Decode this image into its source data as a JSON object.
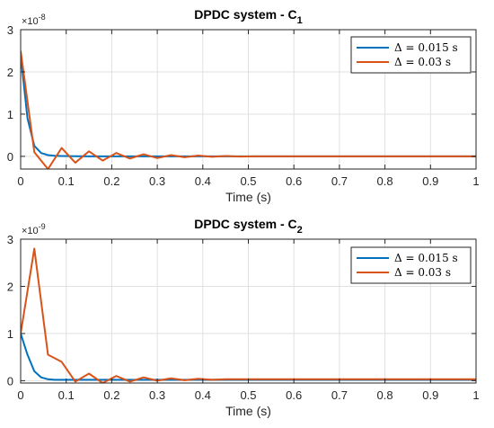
{
  "chart_data": [
    {
      "type": "line",
      "title_main": "DPDC system - C",
      "title_sub": "1",
      "xlabel": "Time (s)",
      "ylabel": "",
      "exponent_base": "×10",
      "exponent_power": "-8",
      "xlim": [
        0,
        1
      ],
      "ylim": [
        -0.3,
        3
      ],
      "xticks": [
        "0",
        "0.1",
        "0.2",
        "0.3",
        "0.4",
        "0.5",
        "0.6",
        "0.7",
        "0.8",
        "0.9",
        "1"
      ],
      "yticks": [
        {
          "value": 0,
          "label": "0"
        },
        {
          "value": 1,
          "label": "1"
        },
        {
          "value": 2,
          "label": "2"
        },
        {
          "value": 3,
          "label": "3"
        }
      ],
      "grid": true,
      "legend_position": "top-right",
      "series": [
        {
          "name": "Δ = 0.015 s",
          "color": "#0072BD",
          "x": [
            0,
            0.015,
            0.03,
            0.045,
            0.06,
            0.075,
            0.09,
            0.105,
            0.12,
            0.15,
            0.2,
            0.3,
            0.4,
            0.5,
            0.6,
            0.7,
            0.8,
            0.9,
            1.0
          ],
          "y": [
            2.4,
            0.9,
            0.25,
            0.08,
            0.03,
            0.015,
            0.01,
            0.005,
            0.003,
            0.002,
            0.001,
            0,
            0,
            0,
            0,
            0,
            0,
            0,
            0
          ]
        },
        {
          "name": "Δ = 0.03 s",
          "color": "#D95319",
          "x": [
            0,
            0.03,
            0.06,
            0.09,
            0.12,
            0.15,
            0.18,
            0.21,
            0.24,
            0.27,
            0.3,
            0.33,
            0.36,
            0.39,
            0.42,
            0.45,
            0.48,
            0.51,
            0.6,
            0.7,
            0.8,
            0.9,
            1.0
          ],
          "y": [
            2.5,
            0.1,
            -0.3,
            0.2,
            -0.15,
            0.12,
            -0.1,
            0.08,
            -0.05,
            0.05,
            -0.04,
            0.03,
            -0.02,
            0.02,
            -0.01,
            0.01,
            -0.005,
            0,
            0,
            0,
            0,
            0,
            0
          ]
        }
      ]
    },
    {
      "type": "line",
      "title_main": "DPDC system - C",
      "title_sub": "2",
      "xlabel": "Time (s)",
      "ylabel": "",
      "exponent_base": "×10",
      "exponent_power": "-9",
      "xlim": [
        0,
        1
      ],
      "ylim": [
        -0.05,
        3
      ],
      "xticks": [
        "0",
        "0.1",
        "0.2",
        "0.3",
        "0.4",
        "0.5",
        "0.6",
        "0.7",
        "0.8",
        "0.9",
        "1"
      ],
      "yticks": [
        {
          "value": 0,
          "label": "0"
        },
        {
          "value": 1,
          "label": "1"
        },
        {
          "value": 2,
          "label": "2"
        },
        {
          "value": 3,
          "label": "3"
        }
      ],
      "grid": true,
      "legend_position": "top-right",
      "series": [
        {
          "name": "Δ = 0.015 s",
          "color": "#0072BD",
          "x": [
            0,
            0.015,
            0.03,
            0.045,
            0.06,
            0.075,
            0.09,
            0.105,
            0.12,
            0.2,
            0.3,
            0.4,
            0.5,
            0.6,
            0.7,
            0.8,
            0.9,
            1.0
          ],
          "y": [
            1.0,
            0.55,
            0.2,
            0.07,
            0.03,
            0.02,
            0.02,
            0.02,
            0.02,
            0.02,
            0.02,
            0.02,
            0.02,
            0.02,
            0.02,
            0.02,
            0.02,
            0.02
          ]
        },
        {
          "name": "Δ = 0.03 s",
          "color": "#D95319",
          "x": [
            0,
            0.03,
            0.06,
            0.09,
            0.12,
            0.15,
            0.18,
            0.21,
            0.24,
            0.27,
            0.3,
            0.33,
            0.36,
            0.39,
            0.42,
            0.45,
            0.5,
            0.6,
            0.7,
            0.8,
            0.9,
            1.0
          ],
          "y": [
            1.0,
            2.8,
            0.55,
            0.4,
            -0.02,
            0.15,
            -0.05,
            0.1,
            -0.02,
            0.07,
            0.0,
            0.05,
            0.01,
            0.04,
            0.02,
            0.03,
            0.03,
            0.03,
            0.03,
            0.03,
            0.03,
            0.03
          ]
        }
      ]
    }
  ]
}
